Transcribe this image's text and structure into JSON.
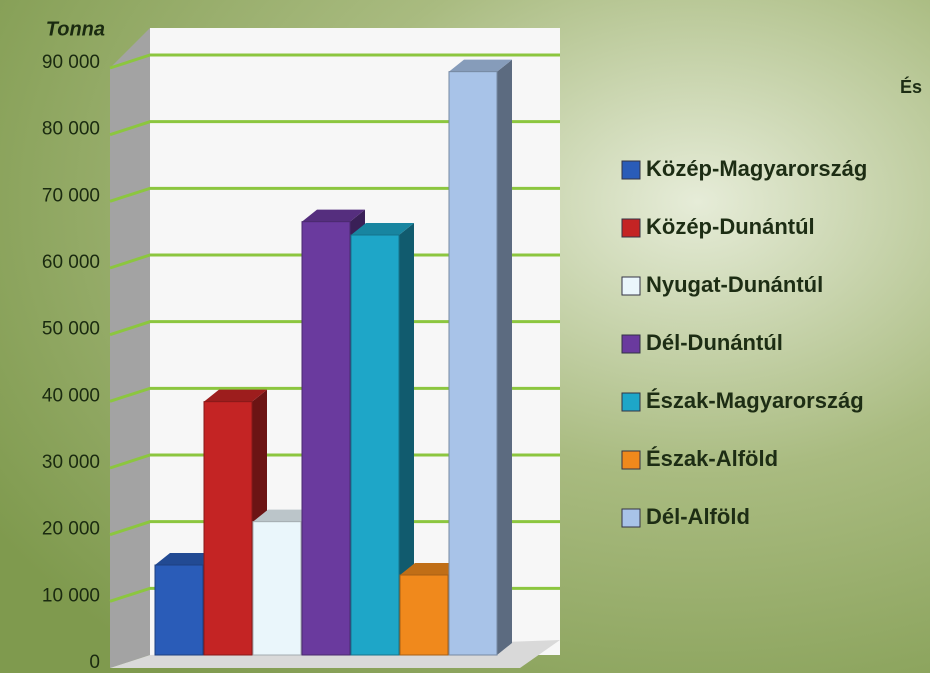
{
  "chart_data": {
    "type": "bar3d",
    "y_label": "Tonna",
    "annotation": "És",
    "categories": [
      "Közép-Magyarország",
      "Közép-Dunántúl",
      "Nyugat-Dunántúl",
      "Dél-Dunántúl",
      "Észak-Magyarország",
      "Észak-Alföld",
      "Dél-Alföld"
    ],
    "values": [
      13500,
      38000,
      20000,
      65000,
      63000,
      12000,
      87500
    ],
    "colors": [
      "#2a5cb8",
      "#c42424",
      "#eaf6fb",
      "#6a3a9e",
      "#1ea6c8",
      "#f0891c",
      "#a8c3e8"
    ],
    "ylim": [
      0,
      90000
    ],
    "yticks": [
      0,
      {
        "value": 10000,
        "label": "10 000"
      },
      {
        "value": 20000,
        "label": "20 000"
      },
      {
        "value": 30000,
        "label": "30 000"
      },
      {
        "value": 40000,
        "label": "40 000"
      },
      {
        "value": 50000,
        "label": "50 000"
      },
      {
        "value": 60000,
        "label": "60 000"
      },
      {
        "value": 70000,
        "label": "70 000"
      },
      {
        "value": 80000,
        "label": "80 000"
      },
      {
        "value": 90000,
        "label": "90 000"
      }
    ],
    "grid": true,
    "grid_color": "#8cc63f",
    "legend": "right"
  }
}
